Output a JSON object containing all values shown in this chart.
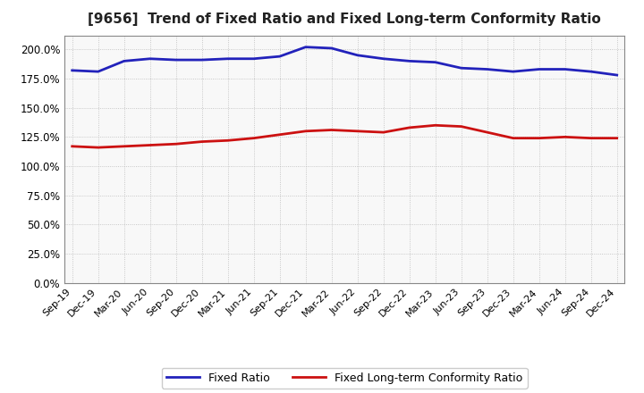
{
  "title": "[9656]  Trend of Fixed Ratio and Fixed Long-term Conformity Ratio",
  "x_labels": [
    "Sep-19",
    "Dec-19",
    "Mar-20",
    "Jun-20",
    "Sep-20",
    "Dec-20",
    "Mar-21",
    "Jun-21",
    "Sep-21",
    "Dec-21",
    "Mar-22",
    "Jun-22",
    "Sep-22",
    "Dec-22",
    "Mar-23",
    "Jun-23",
    "Sep-23",
    "Dec-23",
    "Mar-24",
    "Jun-24",
    "Sep-24",
    "Dec-24"
  ],
  "fixed_ratio": [
    182,
    181,
    190,
    192,
    191,
    191,
    192,
    192,
    194,
    202,
    201,
    195,
    192,
    190,
    189,
    184,
    183,
    181,
    183,
    183,
    181,
    178
  ],
  "fixed_lt_ratio": [
    117,
    116,
    117,
    118,
    119,
    121,
    122,
    124,
    127,
    130,
    131,
    130,
    129,
    133,
    135,
    134,
    129,
    124,
    124,
    125,
    124,
    124
  ],
  "fixed_ratio_color": "#2222bb",
  "fixed_lt_ratio_color": "#cc1111",
  "ylim": [
    0,
    212
  ],
  "yticks": [
    0,
    25,
    50,
    75,
    100,
    125,
    150,
    175,
    200
  ],
  "title_fontsize": 11,
  "title_color": "#222222",
  "background_color": "#ffffff",
  "plot_bg_color": "#f8f8f8",
  "grid_color": "#aaaaaa",
  "legend_fixed_ratio": "Fixed Ratio",
  "legend_fixed_lt_ratio": "Fixed Long-term Conformity Ratio",
  "line_width": 2.0
}
